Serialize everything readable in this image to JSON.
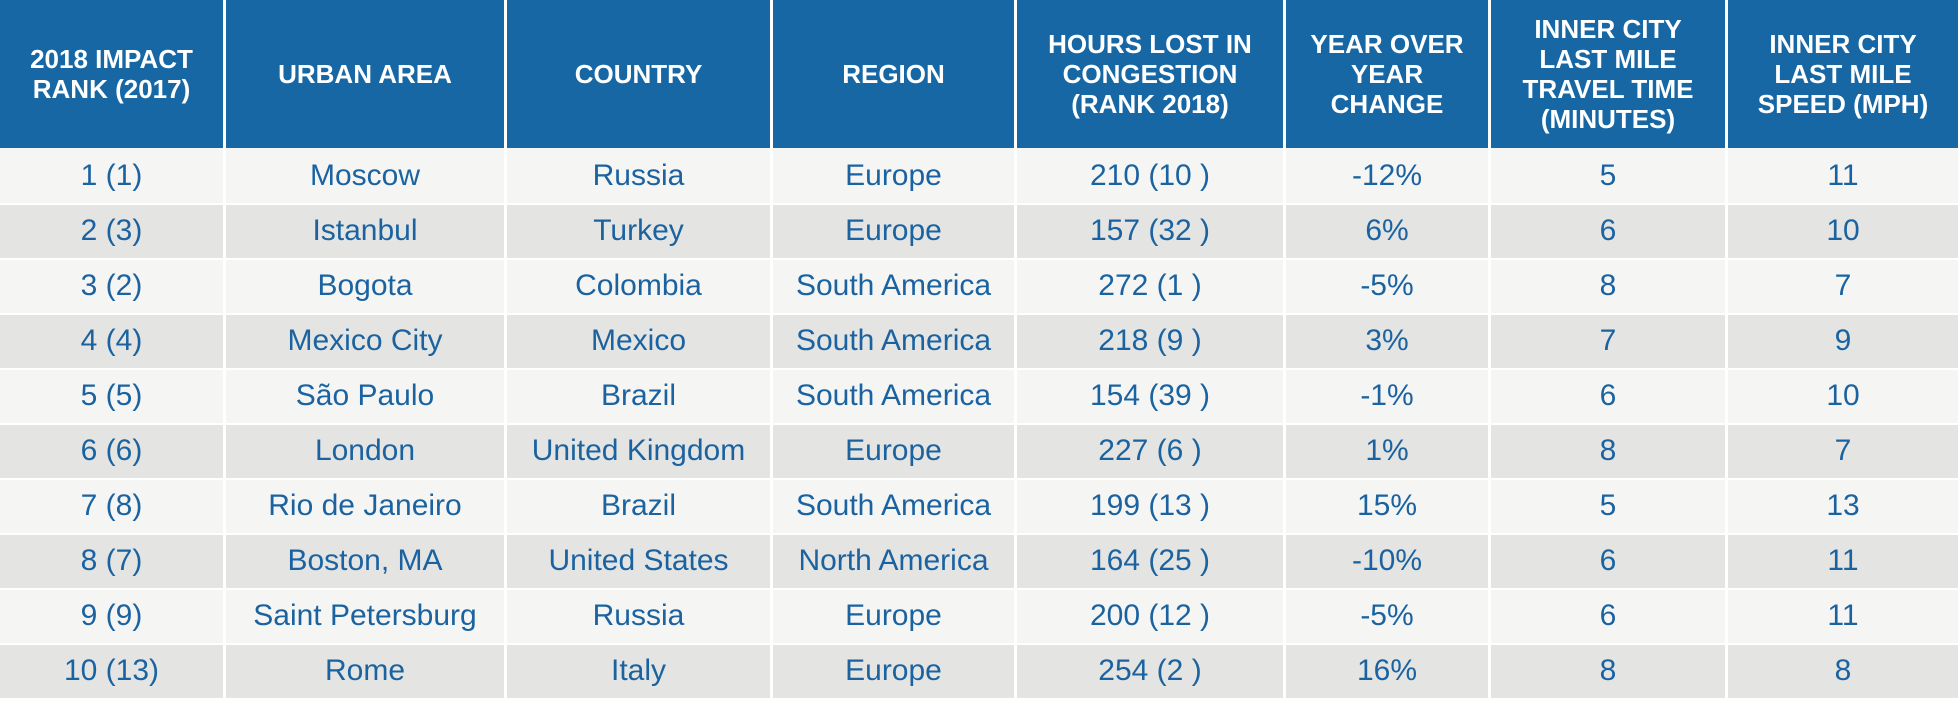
{
  "chart_data": {
    "type": "table",
    "columns": [
      "2018 IMPACT RANK (2017)",
      "URBAN AREA",
      "COUNTRY",
      "REGION",
      "HOURS LOST IN CONGESTION (RANK 2018)",
      "YEAR OVER YEAR CHANGE",
      "INNER CITY LAST MILE TRAVEL TIME (MINUTES)",
      "INNER CITY LAST MILE SPEED (MPH)"
    ],
    "rows": [
      [
        "1 (1)",
        "Moscow",
        "Russia",
        "Europe",
        "210 (10 )",
        "-12%",
        "5",
        "11"
      ],
      [
        "2 (3)",
        "Istanbul",
        "Turkey",
        "Europe",
        "157 (32 )",
        "6%",
        "6",
        "10"
      ],
      [
        "3 (2)",
        "Bogota",
        "Colombia",
        "South America",
        "272 (1 )",
        "-5%",
        "8",
        "7"
      ],
      [
        "4 (4)",
        "Mexico City",
        "Mexico",
        "South America",
        "218 (9 )",
        "3%",
        "7",
        "9"
      ],
      [
        "5 (5)",
        "São Paulo",
        "Brazil",
        "South America",
        "154 (39 )",
        "-1%",
        "6",
        "10"
      ],
      [
        "6 (6)",
        "London",
        "United Kingdom",
        "Europe",
        "227 (6 )",
        "1%",
        "8",
        "7"
      ],
      [
        "7 (8)",
        "Rio de Janeiro",
        "Brazil",
        "South America",
        "199 (13 )",
        "15%",
        "5",
        "13"
      ],
      [
        "8 (7)",
        "Boston, MA",
        "United States",
        "North America",
        "164 (25 )",
        "-10%",
        "6",
        "11"
      ],
      [
        "9 (9)",
        "Saint Petersburg",
        "Russia",
        "Europe",
        "200 (12 )",
        "-5%",
        "6",
        "11"
      ],
      [
        "10 (13)",
        "Rome",
        "Italy",
        "Europe",
        "254 (2 )",
        "16%",
        "8",
        "8"
      ]
    ]
  },
  "colors": {
    "header_bg": "#1767a5",
    "header_text": "#ffffff",
    "cell_text": "#1b63a0",
    "row_light": "#f5f5f4",
    "row_dark": "#e4e4e3"
  }
}
